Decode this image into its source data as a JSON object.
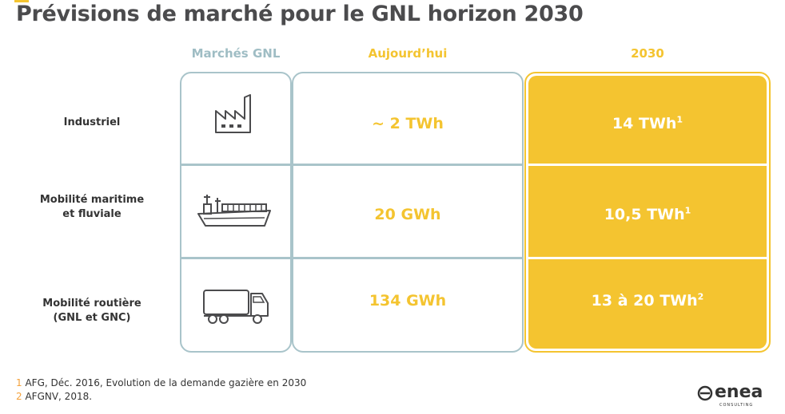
{
  "title": "Prévisions de marché pour le GNL horizon 2030",
  "headers": {
    "markets": "Marchés GNL",
    "today": "Aujourd’hui",
    "year": "2030"
  },
  "rows": [
    {
      "label_line1": "Industriel",
      "label_line2": "",
      "icon": "factory-icon",
      "today": "~ 2 TWh",
      "forecast": "14 TWh",
      "forecast_ref": "1"
    },
    {
      "label_line1": "Mobilité maritime",
      "label_line2": "et fluviale",
      "icon": "ship-icon",
      "today": "20 GWh",
      "forecast": "10,5 TWh",
      "forecast_ref": "1"
    },
    {
      "label_line1": "Mobilité routière",
      "label_line2": "(GNL et GNC)",
      "icon": "truck-icon",
      "today": "134 GWh",
      "forecast": "13 à 20 TWh",
      "forecast_ref": "2"
    }
  ],
  "footnotes": [
    {
      "num": "1",
      "text": " AFG, Déc. 2016, Evolution de la demande gazière en 2030"
    },
    {
      "num": "2",
      "text": " AFGNV, 2018."
    }
  ],
  "logo": {
    "name": "enea",
    "tagline": "CONSULTING"
  },
  "colors": {
    "accent": "#f4c430",
    "border": "#a9c4ca",
    "text": "#4b4b4d"
  }
}
